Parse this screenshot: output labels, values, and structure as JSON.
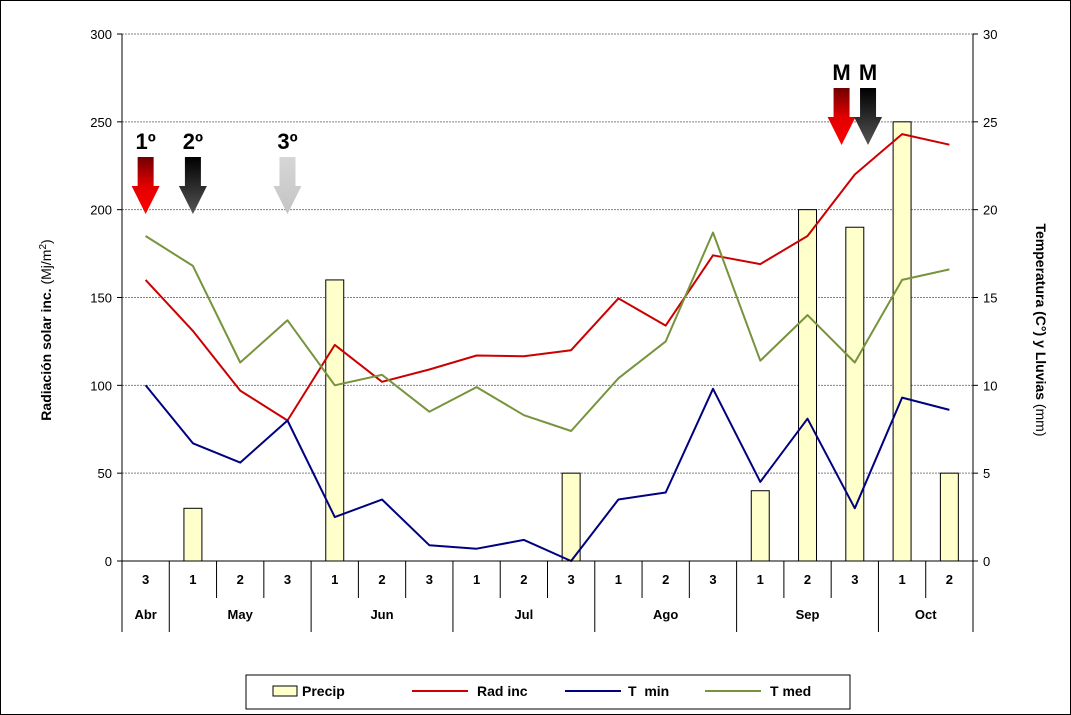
{
  "chart_data": {
    "type": "bar+line",
    "y_left": {
      "label": "Radiación solar inc.",
      "unit": "(Mj/m",
      "unit_sup": "2",
      "unit_end": ")",
      "ylim": [
        0,
        300
      ],
      "ticks": [
        "0",
        "50",
        "100",
        "150",
        "200",
        "250",
        "300"
      ]
    },
    "y_right": {
      "label": "Temperatura (C°) y Lluvias",
      "unit": "(mm)",
      "ylim": [
        0,
        30
      ],
      "ticks": [
        "0",
        "5",
        "10",
        "15",
        "20",
        "25",
        "30"
      ]
    },
    "grid": true,
    "categories": [
      "3",
      "1",
      "2",
      "3",
      "1",
      "2",
      "3",
      "1",
      "2",
      "3",
      "1",
      "2",
      "3",
      "1",
      "2",
      "3",
      "1",
      "2"
    ],
    "months": [
      {
        "name": "Abr",
        "start": 0,
        "span": 1
      },
      {
        "name": "May",
        "start": 1,
        "span": 3
      },
      {
        "name": "Jun",
        "start": 4,
        "span": 3
      },
      {
        "name": "Jul",
        "start": 7,
        "span": 3
      },
      {
        "name": "Ago",
        "start": 10,
        "span": 3
      },
      {
        "name": "Sep",
        "start": 13,
        "span": 3
      },
      {
        "name": "Oct",
        "start": 16,
        "span": 2
      }
    ],
    "series": [
      {
        "name": "Precip",
        "kind": "bar",
        "axis": "right",
        "color": "#FFFFCC",
        "values": [
          0,
          3,
          0,
          0,
          16,
          0,
          0,
          0,
          0,
          5,
          0,
          0,
          0,
          4,
          20,
          19,
          25,
          5
        ]
      },
      {
        "name": "Rad inc",
        "kind": "line",
        "axis": "left",
        "color": "#CC0000",
        "values": [
          160,
          131,
          97,
          80,
          123,
          102,
          109,
          117,
          116.5,
          120,
          149.5,
          134,
          174,
          169,
          185,
          220,
          243,
          237
        ]
      },
      {
        "name": "T  min",
        "kind": "line",
        "axis": "right",
        "color": "#000080",
        "values": [
          10,
          6.7,
          5.6,
          8,
          2.5,
          3.5,
          0.9,
          0.7,
          1.2,
          0,
          3.5,
          3.9,
          9.8,
          4.5,
          8.1,
          3,
          9.3,
          8.6
        ]
      },
      {
        "name": "T med",
        "kind": "line",
        "axis": "right",
        "color": "#77933C",
        "values": [
          18.5,
          16.8,
          11.3,
          13.7,
          10,
          10.6,
          8.5,
          9.9,
          8.3,
          7.4,
          10.4,
          12.5,
          18.7,
          11.4,
          14,
          11.3,
          16,
          16.6
        ]
      }
    ],
    "annotations": [
      {
        "label": "1º",
        "cat": 0,
        "color": "red"
      },
      {
        "label": "2º",
        "cat": 1,
        "color": "black"
      },
      {
        "label": "3º",
        "cat": 3,
        "color": "gray"
      },
      {
        "label": "M",
        "cat": 15,
        "color": "red",
        "offset": -0.28,
        "high": true
      },
      {
        "label": "M",
        "cat": 15,
        "color": "black",
        "offset": 0.28,
        "high": true
      }
    ],
    "legend": {
      "placement": "bottom"
    }
  }
}
